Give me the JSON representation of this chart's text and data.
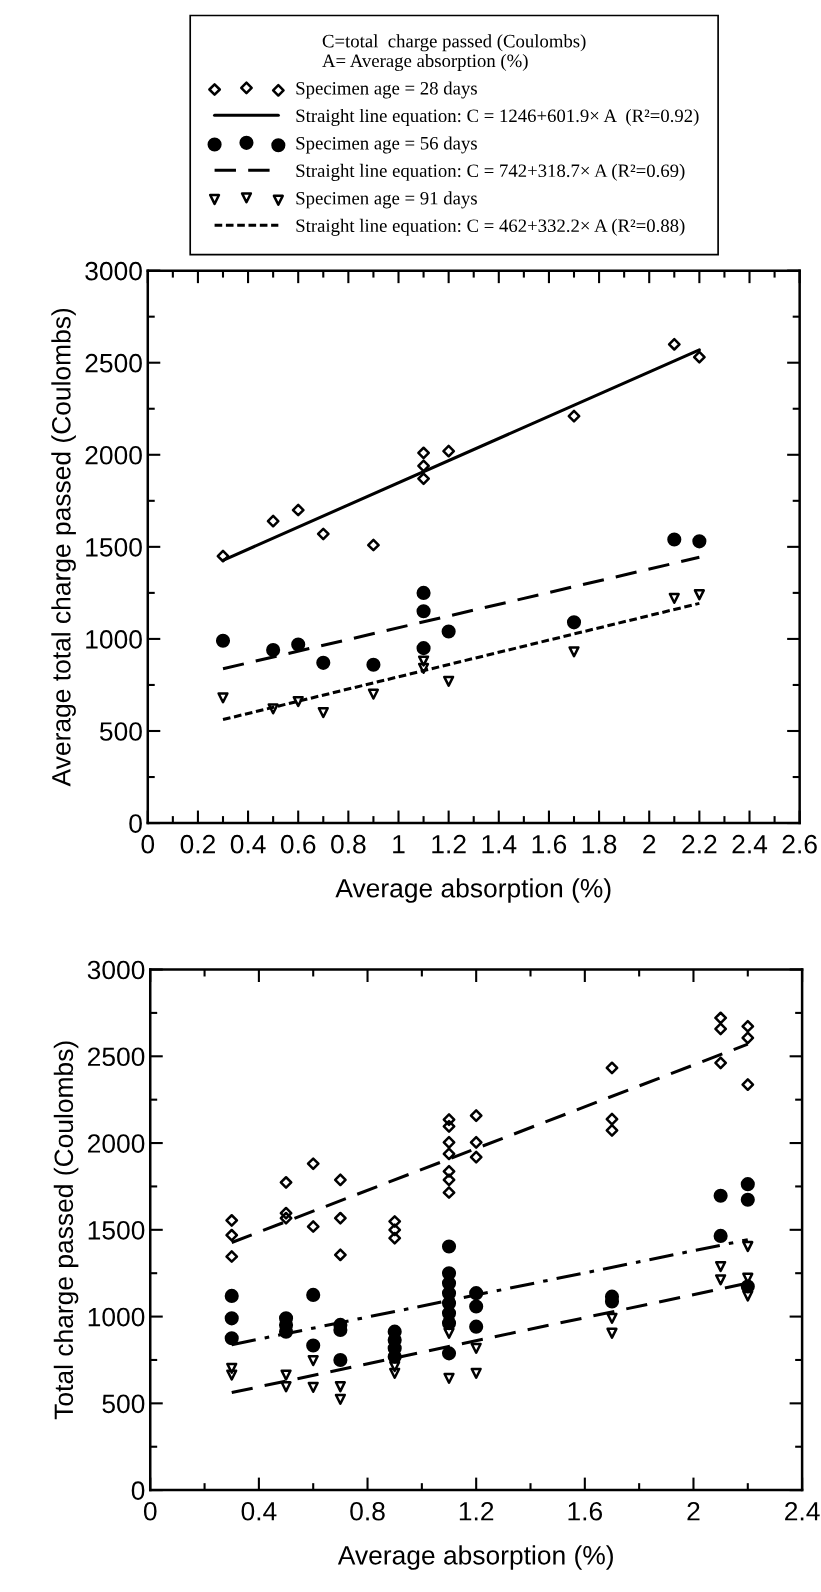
{
  "chart_data": [
    {
      "type": "scatter",
      "xlabel": "Average absorption (%)",
      "ylabel": "Average total charge passed (Coulombs)",
      "legend_title": "C=total  charge passed (Coulombs)\nA= Average absorption (%)",
      "legend": "top",
      "xlim": [
        0,
        2.6
      ],
      "ylim": [
        0,
        3000
      ],
      "xticks": [
        0,
        {
          "value": 0.1,
          "label": null
        },
        0.2,
        {
          "value": 0.3,
          "label": null
        },
        0.4,
        {
          "value": 0.5,
          "label": null
        },
        0.6,
        {
          "value": 0.7,
          "label": null
        },
        0.8,
        {
          "value": 0.9,
          "label": null
        },
        1,
        {
          "value": 1.1,
          "label": null
        },
        1.2,
        {
          "value": 1.3,
          "label": null
        },
        1.4,
        {
          "value": 1.5,
          "label": null
        },
        1.6,
        {
          "value": 1.7,
          "label": null
        },
        1.8,
        {
          "value": 1.9,
          "label": null
        },
        2,
        {
          "value": 2.1,
          "label": null
        },
        2.2,
        {
          "value": 2.3,
          "label": null
        },
        2.4,
        {
          "value": 2.5,
          "label": null
        },
        2.6
      ],
      "yticks": [
        0,
        {
          "value": 250,
          "label": null
        },
        500,
        {
          "value": 750,
          "label": null
        },
        1000,
        {
          "value": 1250,
          "label": null
        },
        1500,
        {
          "value": 1750,
          "label": null
        },
        2000,
        {
          "value": 2250,
          "label": null
        },
        2500,
        {
          "value": 2750,
          "label": null
        },
        3000
      ],
      "series": [
        {
          "name": "Specimen age = 28 days",
          "marker": "diamond",
          "color": "#000000",
          "x": [
            0.3,
            0.5,
            0.6,
            0.7,
            0.9,
            1.1,
            1.1,
            1.1,
            1.2,
            1.7,
            2.1,
            2.2
          ],
          "values": [
            1450,
            1640,
            1700,
            1570,
            1510,
            2010,
            1940,
            1870,
            2020,
            2210,
            2600,
            2530
          ]
        },
        {
          "name": "Straight line equation: C = 1246+601.9× A  (R²=0.92)",
          "type": "line",
          "line_style": "solid",
          "color": "#000000",
          "x": [
            0.3,
            2.2
          ],
          "values": [
            1427,
            2570
          ]
        },
        {
          "name": "Specimen age = 56 days",
          "marker": "circle",
          "color": "#000000",
          "x": [
            0.3,
            0.5,
            0.6,
            0.7,
            0.9,
            1.1,
            1.1,
            1.1,
            1.2,
            1.7,
            2.1,
            2.2
          ],
          "values": [
            990,
            940,
            970,
            870,
            860,
            1250,
            1150,
            950,
            1040,
            1090,
            1540,
            1530
          ]
        },
        {
          "name": "Straight line equation: C = 742+318.7× A (R²=0.69)",
          "type": "line",
          "line_style": "dashed",
          "color": "#000000",
          "x": [
            0.3,
            2.2
          ],
          "values": [
            838,
            1443
          ]
        },
        {
          "name": "Specimen age = 91 days",
          "marker": "triangle",
          "color": "#000000",
          "x": [
            0.3,
            0.5,
            0.6,
            0.7,
            0.9,
            1.1,
            1.1,
            1.2,
            1.7,
            2.1,
            2.2
          ],
          "values": [
            680,
            620,
            660,
            600,
            700,
            880,
            840,
            770,
            930,
            1220,
            1240
          ]
        },
        {
          "name": "Straight line equation: C = 462+332.2× A (R²=0.88)",
          "type": "line",
          "line_style": "dotted",
          "color": "#000000",
          "x": [
            0.3,
            2.2
          ],
          "values": [
            562,
            1193
          ]
        }
      ]
    },
    {
      "type": "scatter",
      "xlabel": "Average absorption (%)",
      "ylabel": "Total charge passed (Coulombs)",
      "xlim": [
        0,
        2.4
      ],
      "ylim": [
        0,
        3000
      ],
      "xticks": [
        0,
        {
          "value": 0.2,
          "label": null
        },
        0.4,
        {
          "value": 0.6,
          "label": null
        },
        0.8,
        {
          "value": 1.0,
          "label": null
        },
        1.2,
        {
          "value": 1.4,
          "label": null
        },
        1.6,
        {
          "value": 1.8,
          "label": null
        },
        2,
        {
          "value": 2.2,
          "label": null
        },
        2.4
      ],
      "yticks": [
        0,
        {
          "value": 250,
          "label": null
        },
        500,
        {
          "value": 750,
          "label": null
        },
        1000,
        {
          "value": 1250,
          "label": null
        },
        1500,
        {
          "value": 1750,
          "label": null
        },
        2000,
        {
          "value": 2250,
          "label": null
        },
        2500,
        {
          "value": 2750,
          "label": null
        },
        3000
      ],
      "series": [
        {
          "marker": "diamond",
          "color": "#000000",
          "x": [
            0.3,
            0.3,
            0.3,
            0.5,
            0.5,
            0.5,
            0.6,
            0.6,
            0.7,
            0.7,
            0.7,
            0.9,
            0.9,
            0.9,
            1.1,
            1.1,
            1.1,
            1.1,
            1.1,
            1.1,
            1.1,
            1.2,
            1.2,
            1.2,
            1.7,
            1.7,
            1.7,
            2.1,
            2.1,
            2.1,
            2.2,
            2.2,
            2.2
          ],
          "values": [
            1554,
            1469,
            1346,
            1773,
            1596,
            1567,
            1881,
            1519,
            1788,
            1567,
            1356,
            1548,
            1500,
            1452,
            2135,
            2096,
            2004,
            1938,
            1837,
            1788,
            1715,
            2158,
            2004,
            1919,
            2433,
            2138,
            2073,
            2721,
            2658,
            2462,
            2673,
            2606,
            2337
          ]
        },
        {
          "type": "line",
          "line_style": "dashed",
          "color": "#000000",
          "x": [
            0.3,
            2.2
          ],
          "values": [
            1427,
            2570
          ]
        },
        {
          "marker": "circle",
          "color": "#000000",
          "x": [
            0.3,
            0.3,
            0.3,
            0.5,
            0.5,
            0.5,
            0.6,
            0.6,
            0.7,
            0.7,
            0.7,
            0.9,
            0.9,
            0.9,
            0.9,
            1.1,
            1.1,
            1.1,
            1.1,
            1.1,
            1.1,
            1.1,
            1.1,
            1.2,
            1.2,
            1.2,
            1.7,
            1.7,
            2.1,
            2.1,
            2.2,
            2.2,
            2.2
          ],
          "values": [
            1119,
            990,
            875,
            990,
            952,
            913,
            1125,
            833,
            952,
            923,
            750,
            913,
            865,
            817,
            769,
            1404,
            1250,
            1192,
            1135,
            1077,
            1019,
            962,
            788,
            1135,
            1058,
            942,
            1115,
            1087,
            1696,
            1465,
            1763,
            1673,
            1173
          ]
        },
        {
          "type": "line",
          "line_style": "dashdot",
          "color": "#000000",
          "x": [
            0.3,
            2.2
          ],
          "values": [
            838,
            1443
          ]
        },
        {
          "marker": "triangle",
          "color": "#000000",
          "x": [
            0.3,
            0.3,
            0.5,
            0.5,
            0.6,
            0.6,
            0.7,
            0.7,
            0.9,
            0.9,
            1.1,
            1.1,
            1.1,
            1.2,
            1.2,
            1.7,
            1.7,
            2.1,
            2.1,
            2.2,
            2.2,
            2.2
          ],
          "values": [
            702,
            663,
            663,
            596,
            746,
            592,
            596,
            523,
            712,
            673,
            962,
            904,
            644,
            817,
            673,
            990,
            904,
            1288,
            1212,
            1404,
            1221,
            1119
          ]
        },
        {
          "type": "line",
          "line_style": "dashed",
          "color": "#000000",
          "x": [
            0.3,
            2.2
          ],
          "values": [
            562,
            1193
          ]
        }
      ]
    }
  ]
}
